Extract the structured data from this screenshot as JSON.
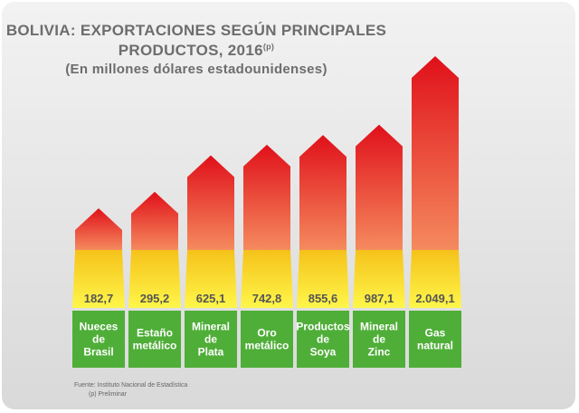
{
  "title_line1": "BOLIVIA: EXPORTACIONES SEGÚN PRINCIPALES",
  "title_line2": "PRODUCTOS, 2016",
  "title_sup": "(p)",
  "subtitle": "(En millones dólares estadounidenses)",
  "source": "Fuente: Instituto Nacional de Estadística",
  "note": "(p) Preliminar",
  "colors": {
    "arrow_top": "#e0101a",
    "arrow_bottom": "#f58a5e",
    "band_top": "#f5c21a",
    "band_bottom": "#fff64a",
    "label_box": "#4fae38"
  },
  "chart_data": {
    "type": "bar",
    "categories": [
      [
        "Nueces",
        "de",
        "Brasil"
      ],
      [
        "Estaño",
        "metálico"
      ],
      [
        "Mineral",
        "de",
        "Plata"
      ],
      [
        "Oro",
        "metálico"
      ],
      [
        "Productos",
        "de",
        "Soya"
      ],
      [
        "Mineral",
        "de",
        "Zinc"
      ],
      [
        "Gas",
        "natural"
      ]
    ],
    "values": [
      182.7,
      295.2,
      625.1,
      742.8,
      855.6,
      987.1,
      2049.1
    ],
    "value_labels": [
      "182,7",
      "295,2",
      "625,1",
      "742,8",
      "855,6",
      "987,1",
      "2.049,1"
    ]
  }
}
